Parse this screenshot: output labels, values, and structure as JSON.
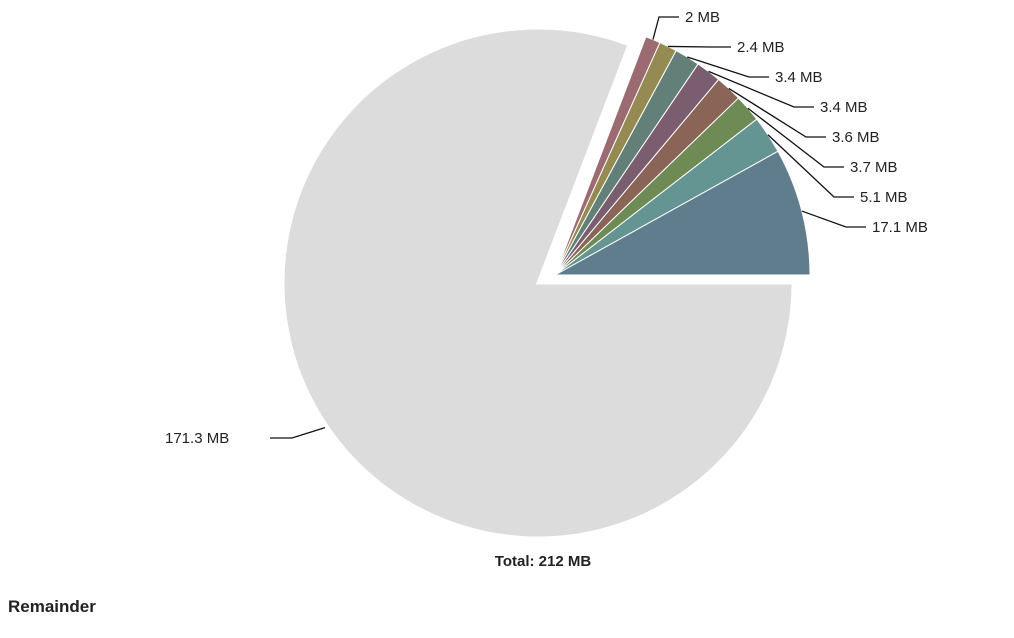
{
  "chart_data": {
    "type": "pie",
    "unit": "MB",
    "slices": [
      {
        "label": "17.1 MB",
        "value": 17.1,
        "color": "#5f7d8c",
        "exploded": true
      },
      {
        "label": "5.1 MB",
        "value": 5.1,
        "color": "#659593",
        "exploded": true
      },
      {
        "label": "3.7 MB",
        "value": 3.7,
        "color": "#6e8a55",
        "exploded": true
      },
      {
        "label": "3.6 MB",
        "value": 3.6,
        "color": "#8a6557",
        "exploded": true
      },
      {
        "label": "3.4 MB",
        "value": 3.4,
        "color": "#7a5e70",
        "exploded": true
      },
      {
        "label": "3.4 MB",
        "value": 3.4,
        "color": "#628078",
        "exploded": true
      },
      {
        "label": "2.4 MB",
        "value": 2.4,
        "color": "#958a52",
        "exploded": true
      },
      {
        "label": "2 MB",
        "value": 2,
        "color": "#9c6b72",
        "exploded": true
      },
      {
        "label": "171.3 MB",
        "value": 171.3,
        "color": "#dcdcdc",
        "exploded": false
      }
    ],
    "total_label": "Total: 212 MB"
  },
  "footer": {
    "title": "Remainder"
  }
}
